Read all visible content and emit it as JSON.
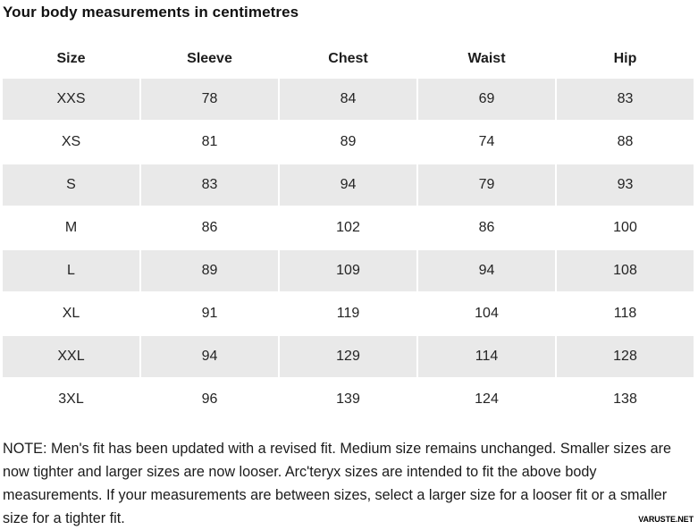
{
  "chart_data": {
    "type": "table",
    "title": "Your body measurements in centimetres",
    "columns": [
      "Size",
      "Sleeve",
      "Chest",
      "Waist",
      "Hip"
    ],
    "rows": [
      [
        "XXS",
        78,
        84,
        69,
        83
      ],
      [
        "XS",
        81,
        89,
        74,
        88
      ],
      [
        "S",
        83,
        94,
        79,
        93
      ],
      [
        "M",
        86,
        102,
        86,
        100
      ],
      [
        "L",
        89,
        109,
        94,
        108
      ],
      [
        "XL",
        91,
        119,
        104,
        118
      ],
      [
        "XXL",
        94,
        129,
        114,
        128
      ],
      [
        "3XL",
        96,
        139,
        124,
        138
      ]
    ],
    "layout": {
      "zebra_striping": "alternating rows shaded starting with first data row",
      "header_position": "top",
      "grid": "off"
    }
  },
  "note": "NOTE: Men's fit has been updated with a revised fit. Medium size remains unchanged. Smaller sizes are now tighter and larger sizes are now looser. Arc'teryx sizes are intended to fit the above body measurements. If your measurements are between sizes, select a larger size for a looser fit or a smaller size for a tighter fit.",
  "watermark": "VARUSTE.NET",
  "colors": {
    "shaded_row": "#e9e9e9",
    "text": "#1c1c1c",
    "title": "#111111",
    "background": "#ffffff"
  }
}
